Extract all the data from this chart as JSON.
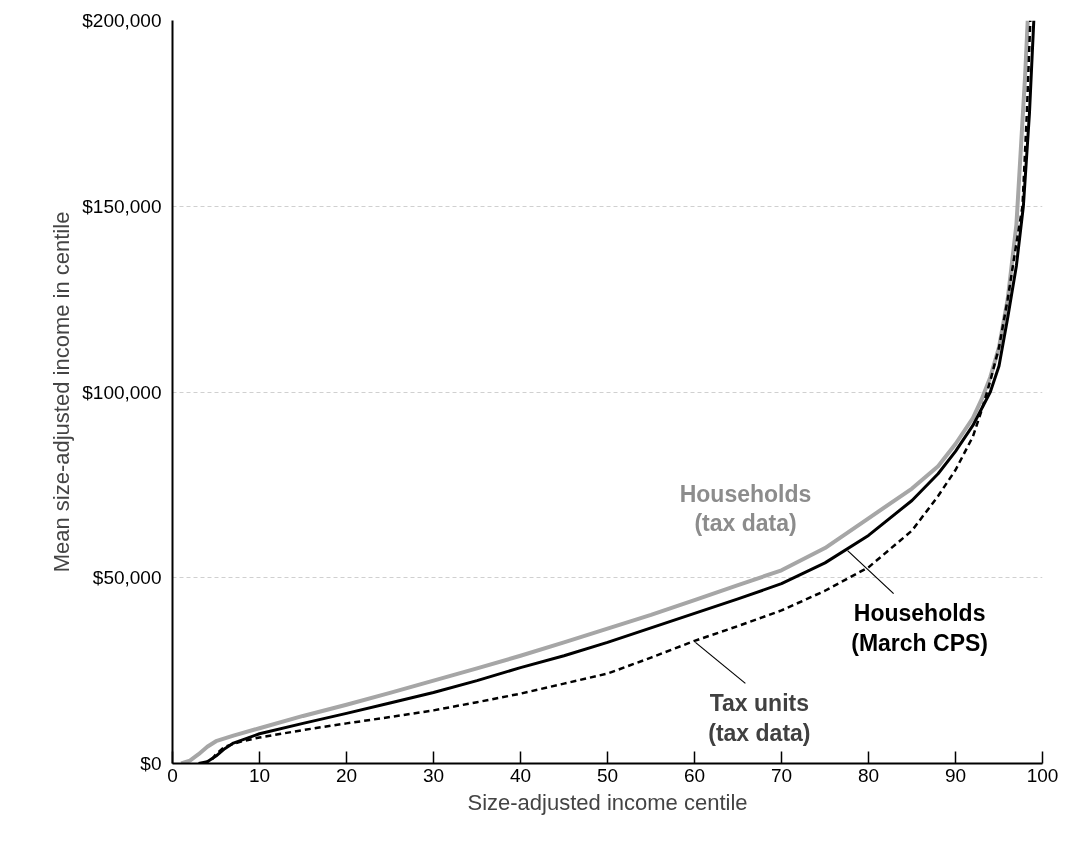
{
  "chart_data": {
    "type": "line",
    "xlabel": "Size-adjusted income centile",
    "ylabel": "Mean size-adjusted income in centile",
    "xlim": [
      0,
      100
    ],
    "xticks": [
      0,
      10,
      20,
      30,
      40,
      50,
      60,
      70,
      80,
      90,
      100
    ],
    "ylim": [
      0,
      200000
    ],
    "yticks": [
      {
        "value": 0,
        "label": "$0"
      },
      {
        "value": 50000,
        "label": "$50,000"
      },
      {
        "value": 100000,
        "label": "$100,000"
      },
      {
        "value": 150000,
        "label": "$150,000"
      },
      {
        "value": 200000,
        "label": "$200,000"
      }
    ],
    "grid": "y",
    "marker": "none",
    "series": [
      {
        "color": "#a6a6a6",
        "line_style": "solid",
        "x": [
          1,
          2,
          3,
          4,
          5,
          7,
          10,
          15,
          20,
          25,
          30,
          35,
          40,
          45,
          50,
          55,
          60,
          65,
          70,
          75,
          80,
          85,
          88,
          90,
          92,
          93,
          94,
          95,
          96,
          97,
          98,
          98.3
        ],
        "values": [
          0,
          800,
          2500,
          4500,
          6000,
          7500,
          9500,
          12800,
          15800,
          19000,
          22300,
          25600,
          29000,
          32600,
          36300,
          40000,
          44000,
          48000,
          52000,
          58000,
          66000,
          74000,
          80000,
          86000,
          93000,
          98000,
          104000,
          112000,
          125000,
          145000,
          185000,
          200000
        ]
      },
      {
        "color": "#000000",
        "line_style": "solid",
        "x": [
          3,
          4,
          5,
          6,
          7,
          10,
          15,
          20,
          25,
          30,
          35,
          40,
          45,
          50,
          55,
          60,
          65,
          70,
          75,
          80,
          85,
          88,
          90,
          92,
          94,
          95,
          96,
          97,
          97.8,
          98.5,
          99
        ],
        "values": [
          0,
          500,
          2000,
          4000,
          5500,
          8000,
          10800,
          13500,
          16300,
          19100,
          22300,
          25800,
          29000,
          32600,
          36500,
          40400,
          44300,
          48400,
          54000,
          61400,
          70800,
          78000,
          84000,
          91000,
          100000,
          107000,
          120000,
          134000,
          150000,
          175000,
          200000
        ]
      },
      {
        "color": "#000000",
        "line_style": "dashed",
        "x": [
          3.5,
          4.5,
          5,
          6,
          8,
          10,
          15,
          20,
          25,
          30,
          35,
          40,
          45,
          50,
          55,
          60,
          65,
          70,
          75,
          80,
          85,
          88,
          90,
          92,
          93,
          94,
          95,
          96,
          97,
          97.7,
          98.2,
          98.6
        ],
        "values": [
          0,
          1000,
          2500,
          4500,
          6000,
          7000,
          9000,
          10800,
          12500,
          14300,
          16500,
          18800,
          21500,
          24200,
          28500,
          33000,
          37000,
          41200,
          46500,
          52800,
          62700,
          72000,
          79000,
          88000,
          95000,
          103000,
          112000,
          125000,
          140000,
          150000,
          175000,
          200000
        ]
      }
    ],
    "annotations": [
      "Households\n(tax data)",
      {
        "text": "Households\n(March CPS)",
        "x": 77.6,
        "y": 57300
      },
      {
        "text": "Tax units\n(tax data)",
        "x": 60.1,
        "y": 32600
      }
    ]
  }
}
